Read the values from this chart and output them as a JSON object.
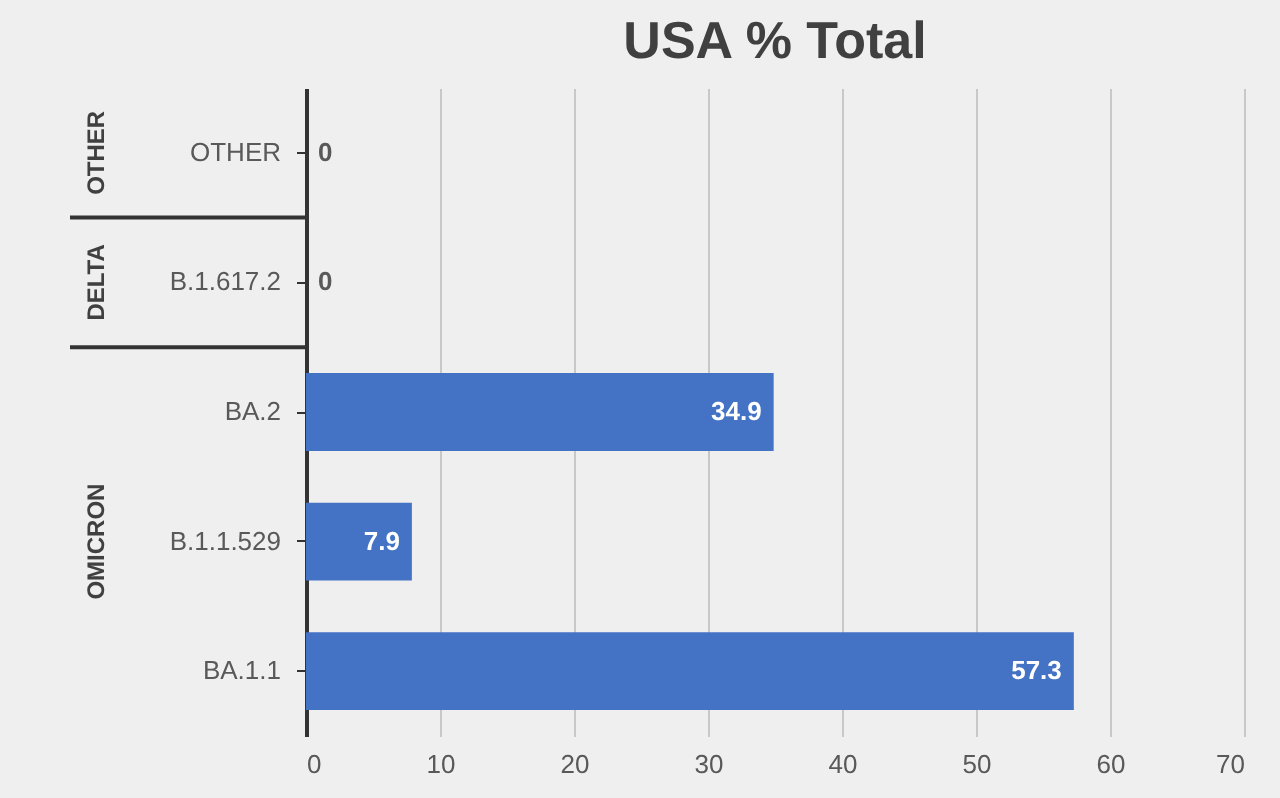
{
  "chart_data": {
    "type": "bar",
    "orientation": "horizontal",
    "title": "USA % Total",
    "categories": [
      "OTHER",
      "B.1.617.2",
      "BA.2",
      "B.1.1.529",
      "BA.1.1"
    ],
    "values": [
      0,
      0,
      34.9,
      7.9,
      57.3
    ],
    "color": "#4472c4",
    "xlim": [
      0,
      70
    ],
    "xticks": [
      0,
      10,
      20,
      30,
      40,
      50,
      60,
      70
    ],
    "grid": "x",
    "data_labels": true,
    "annotations": [
      "OTHER",
      "DELTA",
      "OMICRON"
    ]
  }
}
